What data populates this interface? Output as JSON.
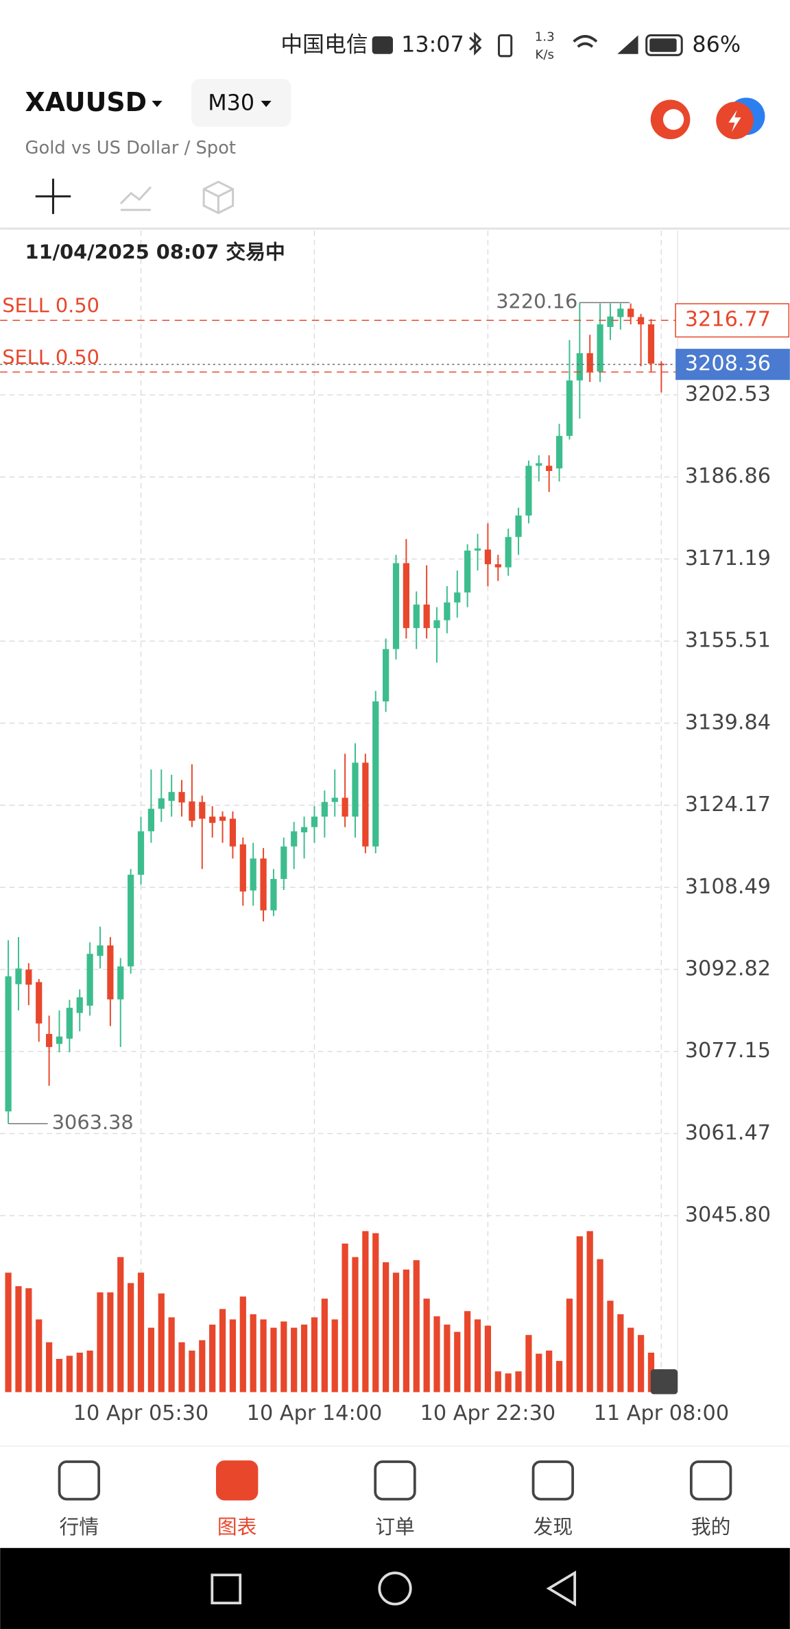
{
  "status_bar": {
    "carrier": "中国电信",
    "time": "13:07",
    "speed": "1.3",
    "speed_unit": "K/s",
    "battery": "86%"
  },
  "header": {
    "symbol": "XAUUSD",
    "timeframe": "M30",
    "description": "Gold vs US Dollar / Spot"
  },
  "chart_data": {
    "type": "candlestick",
    "subtitle": "11/04/2025 08:07 交易中",
    "up_color": "#3dbd8e",
    "down_color": "#e8472c",
    "volume_color": "#e8472c",
    "open": [
      3065.7,
      3090,
      3092.8,
      3090.4,
      3080.5,
      3078.6,
      3079.6,
      3084.5,
      3085.9,
      3095.4,
      3097.4,
      3087.1,
      3093.4,
      3110.9,
      3119.2,
      3123.5,
      3125,
      3126.7,
      3124.9,
      3124.8,
      3122,
      3122,
      3121.6,
      3116.7,
      3107.9,
      3114,
      3104.1,
      3110.1,
      3116.3,
      3119,
      3120,
      3122,
      3124.8,
      3125.6,
      3122,
      3132.3,
      3116.3,
      3144,
      3154,
      3170.4,
      3158,
      3162.5,
      3158,
      3159.5,
      3162.9,
      3164.8,
      3172.8,
      3173,
      3170.2,
      3169.6,
      3175.4,
      3179.5,
      3189,
      3189,
      3188.5,
      3194.7,
      3205.3,
      3210.5,
      3207,
      3215.5,
      3217.4,
      3219,
      3217.4,
      3216,
      3208.5
    ],
    "high": [
      3098.4,
      3099,
      3094,
      3091,
      3084,
      3085,
      3087,
      3089,
      3098,
      3101,
      3099,
      3095,
      3112,
      3122,
      3131,
      3131,
      3130,
      3129,
      3132,
      3126,
      3124,
      3123,
      3123,
      3118,
      3117,
      3116,
      3112,
      3118,
      3121,
      3122,
      3124,
      3127,
      3131,
      3134,
      3136,
      3134,
      3146,
      3156,
      3172,
      3175,
      3165,
      3170,
      3162,
      3166,
      3169,
      3174,
      3176,
      3178,
      3172,
      3177,
      3181,
      3190,
      3191,
      3191,
      3197,
      3213,
      3220.16,
      3214,
      3220,
      3220,
      3220,
      3220,
      3218,
      3217,
      3209
    ],
    "low": [
      3063.38,
      3085,
      3086,
      3079,
      3070.6,
      3077,
      3077,
      3081,
      3084,
      3093,
      3082,
      3078,
      3092,
      3109,
      3117,
      3121,
      3122,
      3122,
      3120,
      3112,
      3118,
      3117,
      3114,
      3105,
      3105,
      3102,
      3103,
      3108,
      3112,
      3114,
      3117,
      3118,
      3122,
      3120,
      3118,
      3115,
      3115,
      3142,
      3152,
      3156,
      3154,
      3156,
      3151.4,
      3157,
      3160,
      3162,
      3169,
      3166,
      3167,
      3168,
      3172,
      3178,
      3186,
      3184,
      3186,
      3194,
      3198,
      3205,
      3205,
      3213,
      3215,
      3216,
      3208,
      3207,
      3203
    ],
    "close": [
      3091.5,
      3093,
      3089.9,
      3082.5,
      3078,
      3080,
      3085.5,
      3087.5,
      3095.8,
      3097.4,
      3087.1,
      3093.4,
      3110.9,
      3119.2,
      3123.5,
      3125.5,
      3126.7,
      3124.7,
      3121.2,
      3121.6,
      3120.8,
      3121.2,
      3116.3,
      3107.7,
      3114,
      3104.1,
      3110.1,
      3116.3,
      3119.2,
      3120,
      3122,
      3124.8,
      3125.6,
      3122,
      3132.3,
      3116.3,
      3144,
      3154,
      3170.4,
      3158,
      3162.5,
      3158,
      3159.5,
      3162.9,
      3164.8,
      3172.8,
      3173.2,
      3170.2,
      3169.6,
      3175.4,
      3179.5,
      3189,
      3189.5,
      3188,
      3194.7,
      3205.3,
      3210.5,
      3207,
      3216,
      3217.5,
      3219,
      3217.4,
      3216,
      3208.5,
      3208.36
    ],
    "volume": [
      115,
      102,
      100,
      70,
      48,
      32,
      35,
      38,
      40,
      96,
      96,
      130,
      105,
      115,
      62,
      95,
      72,
      48,
      40,
      50,
      65,
      80,
      70,
      92,
      75,
      70,
      62,
      68,
      62,
      65,
      72,
      90,
      70,
      143,
      130,
      155,
      153,
      125,
      115,
      118,
      127,
      90,
      73,
      65,
      58,
      78,
      70,
      64,
      20,
      18,
      20,
      55,
      37,
      40,
      30,
      90,
      150,
      155,
      128,
      88,
      75,
      62,
      55,
      38,
      22
    ],
    "vlim": [
      0,
      160
    ],
    "xlim": [
      -0.8,
      65.6
    ],
    "xticks": [
      {
        "value": 13,
        "label": "10 Apr 05:30"
      },
      {
        "value": 30,
        "label": "10 Apr 14:00"
      },
      {
        "value": 47,
        "label": "10 Apr 22:30"
      },
      {
        "value": 64,
        "label": "11 Apr 08:00"
      }
    ],
    "ylim": [
      3012.1,
      3233.9
    ],
    "yticks": [
      {
        "value": 3045.8,
        "label": "3045.80"
      },
      3061.47,
      3077.15,
      3092.82,
      3108.49,
      3124.17,
      {
        "value": 3139.84,
        "label": "3139.84"
      },
      3155.51,
      3171.19,
      3186.86,
      3202.53
    ],
    "grid": true,
    "max_label": 3220.16,
    "min_label": 3063.38,
    "current_price": 3208.36,
    "orders": [
      {
        "label": "SELL 0.50",
        "value": 3216.77
      },
      {
        "label": "SELL 0.50",
        "value": 3206.9
      }
    ]
  },
  "bottom_nav": {
    "items": [
      "行情",
      "图表",
      "订单",
      "发现",
      "我的"
    ],
    "active_index": 1
  }
}
